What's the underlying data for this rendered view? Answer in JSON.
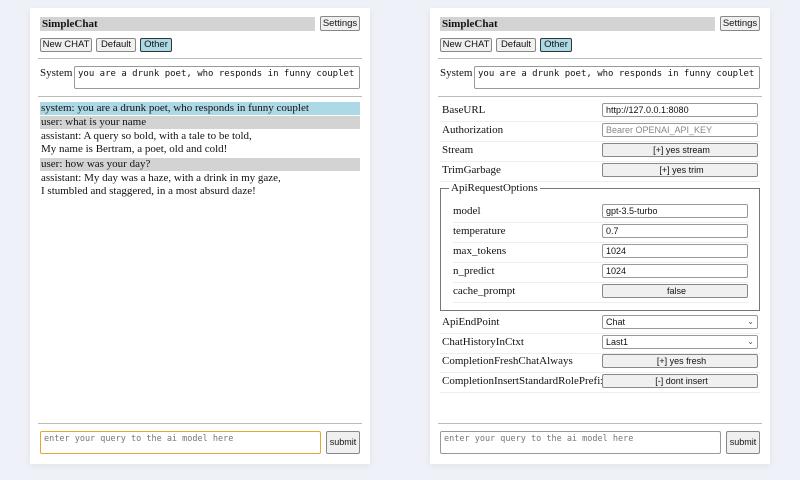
{
  "app": {
    "title": "SimpleChat",
    "settings_label": "Settings",
    "buttons": [
      "New CHAT",
      "Default",
      "Other"
    ],
    "selected": "Other",
    "system_label": "System",
    "system_prompt": "you are a drunk poet, who responds in funny couplet",
    "query_placeholder": "enter your query to the ai model here",
    "submit_label": "submit"
  },
  "chat": [
    {
      "role": "system",
      "lines": [
        "system: you are a drunk poet, who responds in funny couplet"
      ]
    },
    {
      "role": "user",
      "lines": [
        "user: what is your name"
      ]
    },
    {
      "role": "assistant",
      "lines": [
        "assistant: A query so bold, with a tale to be told,",
        "My name is Bertram, a poet, old and cold!"
      ]
    },
    {
      "role": "user",
      "lines": [
        "user: how was your day?"
      ]
    },
    {
      "role": "assistant",
      "lines": [
        "assistant: My day was a haze, with a drink in my gaze,",
        "I stumbled and staggered, in a most absurd daze!"
      ]
    }
  ],
  "settings": {
    "rows": [
      {
        "label": "BaseURL",
        "value": "http://127.0.0.1:8080",
        "kind": "input"
      },
      {
        "label": "Authorization",
        "value": "Bearer OPENAI_API_KEY",
        "kind": "placeholder"
      },
      {
        "label": "Stream",
        "value": "[+] yes stream",
        "kind": "button"
      },
      {
        "label": "TrimGarbage",
        "value": "[+] yes trim",
        "kind": "button"
      }
    ],
    "api_options_legend": "ApiRequestOptions",
    "api_options": [
      {
        "label": "model",
        "value": "gpt-3.5-turbo",
        "kind": "input"
      },
      {
        "label": "temperature",
        "value": "0.7",
        "kind": "input"
      },
      {
        "label": "max_tokens",
        "value": "1024",
        "kind": "input"
      },
      {
        "label": "n_predict",
        "value": "1024",
        "kind": "input"
      },
      {
        "label": "cache_prompt",
        "value": "false",
        "kind": "button"
      }
    ],
    "rows2": [
      {
        "label": "ApiEndPoint",
        "value": "Chat",
        "kind": "select"
      },
      {
        "label": "ChatHistoryInCtxt",
        "value": "Last1",
        "kind": "select"
      },
      {
        "label": "CompletionFreshChatAlways",
        "value": "[+] yes fresh",
        "kind": "button"
      },
      {
        "label": "CompletionInsertStandardRolePrefix",
        "value": "[-] dont insert",
        "kind": "button"
      }
    ]
  },
  "colors": {
    "system_bg": "#add8e6",
    "user_bg": "#d3d3d3",
    "selected_button": "#add8e6",
    "focus_border": "#e0a838"
  }
}
